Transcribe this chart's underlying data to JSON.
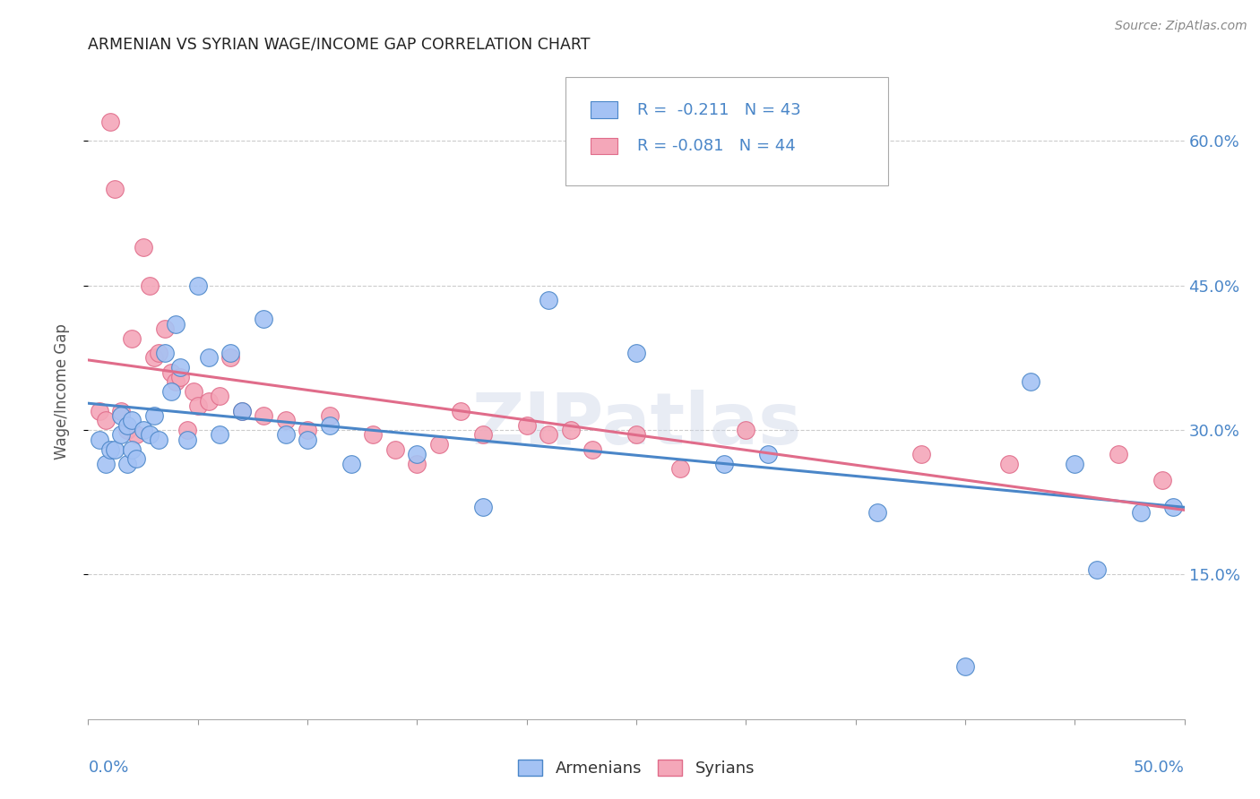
{
  "title": "ARMENIAN VS SYRIAN WAGE/INCOME GAP CORRELATION CHART",
  "source": "Source: ZipAtlas.com",
  "ylabel": "Wage/Income Gap",
  "xlim": [
    0.0,
    0.5
  ],
  "ylim": [
    0.0,
    0.68
  ],
  "yticks": [
    0.15,
    0.3,
    0.45,
    0.6
  ],
  "ytick_labels": [
    "15.0%",
    "30.0%",
    "45.0%",
    "60.0%"
  ],
  "watermark": "ZIPatlas",
  "color_armenian": "#a4c2f4",
  "color_syrian": "#f4a7b9",
  "color_armenian_line": "#4a86c8",
  "color_syrian_line": "#e06c8a",
  "color_title": "#222222",
  "color_axis_labels": "#4a86c8",
  "color_legend_text": "#4a86c8",
  "color_grid": "#cccccc",
  "armenian_x": [
    0.005,
    0.008,
    0.01,
    0.012,
    0.015,
    0.015,
    0.018,
    0.018,
    0.02,
    0.02,
    0.022,
    0.025,
    0.028,
    0.03,
    0.032,
    0.035,
    0.038,
    0.04,
    0.042,
    0.045,
    0.05,
    0.055,
    0.06,
    0.065,
    0.07,
    0.08,
    0.09,
    0.1,
    0.11,
    0.12,
    0.15,
    0.18,
    0.21,
    0.25,
    0.29,
    0.31,
    0.36,
    0.4,
    0.43,
    0.45,
    0.46,
    0.48,
    0.495
  ],
  "armenian_y": [
    0.29,
    0.265,
    0.28,
    0.28,
    0.315,
    0.295,
    0.305,
    0.265,
    0.31,
    0.28,
    0.27,
    0.3,
    0.295,
    0.315,
    0.29,
    0.38,
    0.34,
    0.41,
    0.365,
    0.29,
    0.45,
    0.375,
    0.295,
    0.38,
    0.32,
    0.415,
    0.295,
    0.29,
    0.305,
    0.265,
    0.275,
    0.22,
    0.435,
    0.38,
    0.265,
    0.275,
    0.215,
    0.055,
    0.35,
    0.265,
    0.155,
    0.215,
    0.22
  ],
  "syrian_x": [
    0.005,
    0.008,
    0.01,
    0.012,
    0.015,
    0.018,
    0.02,
    0.022,
    0.025,
    0.028,
    0.03,
    0.032,
    0.035,
    0.038,
    0.04,
    0.042,
    0.045,
    0.048,
    0.05,
    0.055,
    0.06,
    0.065,
    0.07,
    0.08,
    0.09,
    0.1,
    0.11,
    0.13,
    0.14,
    0.15,
    0.16,
    0.17,
    0.18,
    0.2,
    0.21,
    0.22,
    0.23,
    0.25,
    0.27,
    0.3,
    0.38,
    0.42,
    0.47,
    0.49
  ],
  "syrian_y": [
    0.32,
    0.31,
    0.62,
    0.55,
    0.32,
    0.3,
    0.395,
    0.295,
    0.49,
    0.45,
    0.375,
    0.38,
    0.405,
    0.36,
    0.35,
    0.355,
    0.3,
    0.34,
    0.325,
    0.33,
    0.335,
    0.375,
    0.32,
    0.315,
    0.31,
    0.3,
    0.315,
    0.295,
    0.28,
    0.265,
    0.285,
    0.32,
    0.295,
    0.305,
    0.295,
    0.3,
    0.28,
    0.295,
    0.26,
    0.3,
    0.275,
    0.265,
    0.275,
    0.248
  ]
}
